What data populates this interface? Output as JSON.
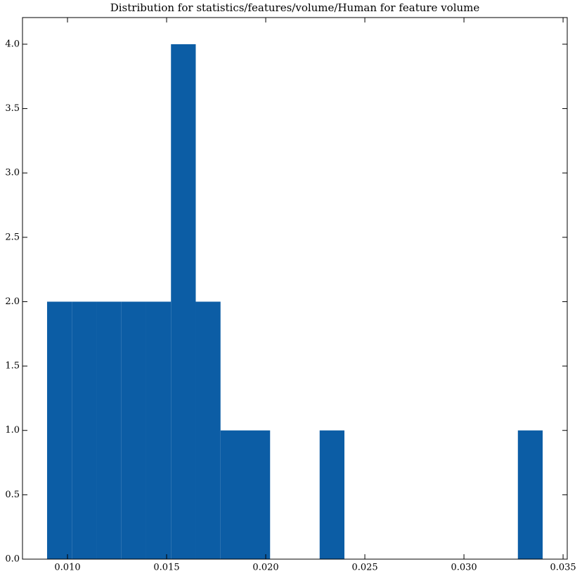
{
  "chart_data": {
    "type": "histogram",
    "title": "Distribution for statistics/features/volume/Human for feature volume",
    "bins": [
      0.00897,
      0.01022,
      0.01147,
      0.01272,
      0.01397,
      0.01522,
      0.01647,
      0.01772,
      0.01897,
      0.02022,
      0.02147,
      0.02272,
      0.02397,
      0.02522,
      0.02647,
      0.02772,
      0.02897,
      0.03022,
      0.03147,
      0.03272,
      0.03397
    ],
    "counts": [
      2,
      2,
      2,
      2,
      2,
      4,
      2,
      1,
      1,
      0,
      0,
      1,
      0,
      0,
      0,
      0,
      0,
      0,
      0,
      1
    ],
    "color": "#0c5da5",
    "xlim": [
      0.00773,
      0.03521
    ],
    "ylim": [
      0,
      4.207
    ],
    "xticks": [
      {
        "value": 0.01,
        "label": "0.010"
      },
      {
        "value": 0.015,
        "label": "0.015"
      },
      {
        "value": 0.02,
        "label": "0.020"
      },
      {
        "value": 0.025,
        "label": "0.025"
      },
      {
        "value": 0.03,
        "label": "0.030"
      },
      {
        "value": 0.035,
        "label": "0.035"
      }
    ],
    "yticks": [
      {
        "value": 0,
        "label": "0.0"
      },
      0.5,
      {
        "value": 1,
        "label": "1.0"
      },
      1.5,
      {
        "value": 2,
        "label": "2.0"
      },
      2.5,
      {
        "value": 3,
        "label": "3.0"
      },
      3.5,
      {
        "value": 4,
        "label": "4.0"
      }
    ]
  }
}
